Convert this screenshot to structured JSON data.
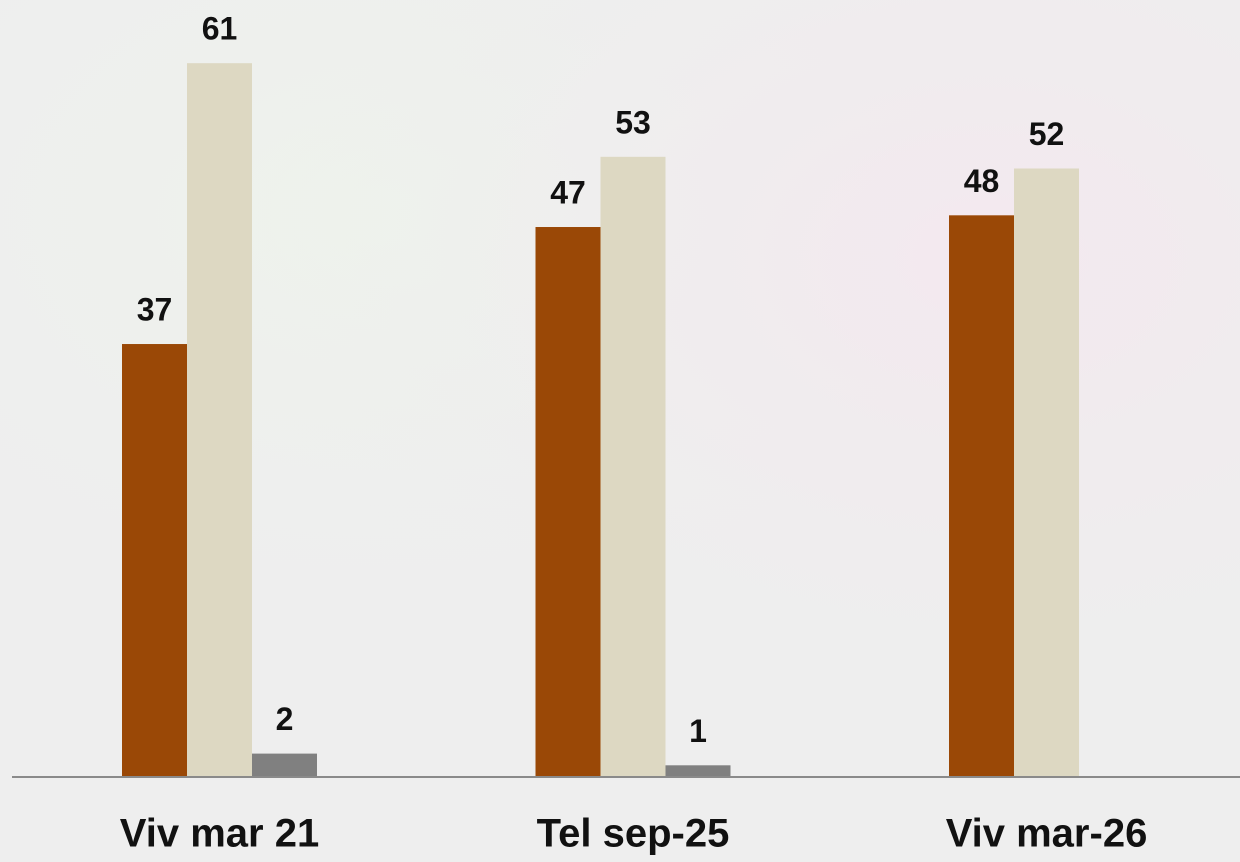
{
  "chart_data": {
    "type": "bar",
    "categories": [
      "Viv mar 21",
      "Tel sep-25",
      "Viv mar-26"
    ],
    "series": [
      {
        "color": "#9a4806",
        "values": [
          37,
          47,
          48
        ]
      },
      {
        "color": "#ddd8c2",
        "values": [
          61,
          53,
          52
        ]
      },
      {
        "color": "#808080",
        "values": [
          2,
          1,
          null
        ]
      }
    ],
    "ylim": [
      0,
      66.4
    ]
  }
}
